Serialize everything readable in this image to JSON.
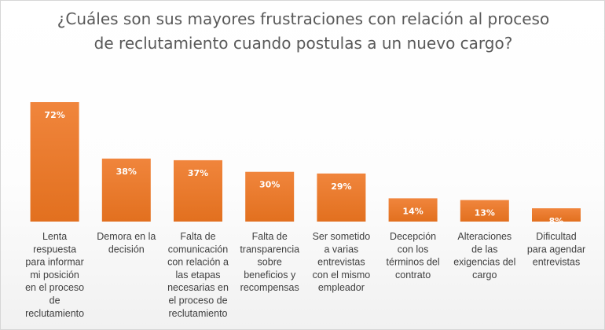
{
  "chart_data": {
    "type": "bar",
    "title": "¿Cuáles son sus mayores frustraciones con relación al proceso de reclutamiento cuando postulas a un nuevo cargo?",
    "xlabel": "",
    "ylabel": "",
    "categories": [
      "Lenta respuesta para informar mi posición en el proceso de reclutamiento",
      "Demora en la decisión",
      "Falta de comunicación con relación a las etapas necesarias en el proceso de reclutamiento",
      "Falta de transparencia sobre beneficios y recompensas",
      "Ser sometido a varias entrevistas con el mismo empleador",
      "Decepción con los términos del contrato",
      "Alteraciones de las exigencias del cargo",
      "Dificultad para agendar entrevistas"
    ],
    "category_lines": [
      [
        "Lenta",
        "respuesta",
        "para informar",
        "mi posición",
        "en el proceso",
        "de",
        "reclutamiento"
      ],
      [
        "Demora en la",
        "decisión"
      ],
      [
        "Falta de",
        "comunicación",
        "con relación a",
        "las etapas",
        "necesarias en",
        "el proceso de",
        "reclutamiento"
      ],
      [
        "Falta de",
        "transparencia",
        "sobre",
        "beneficios y",
        "recompensas"
      ],
      [
        "Ser sometido",
        "a varias",
        "entrevistas",
        "con el mismo",
        "empleador"
      ],
      [
        "Decepción",
        "con los",
        "términos del",
        "contrato"
      ],
      [
        "Alteraciones",
        "de las",
        "exigencias del",
        "cargo"
      ],
      [
        "Dificultad",
        "para agendar",
        "entrevistas"
      ]
    ],
    "values": [
      72,
      38,
      37,
      30,
      29,
      14,
      13,
      8
    ],
    "value_labels": [
      "72%",
      "38%",
      "37%",
      "30%",
      "29%",
      "14%",
      "13%",
      "8%"
    ],
    "unit": "%",
    "ylim": [
      0,
      72
    ],
    "grid": false,
    "legend": "none",
    "bar_color": "#ED7D31"
  }
}
